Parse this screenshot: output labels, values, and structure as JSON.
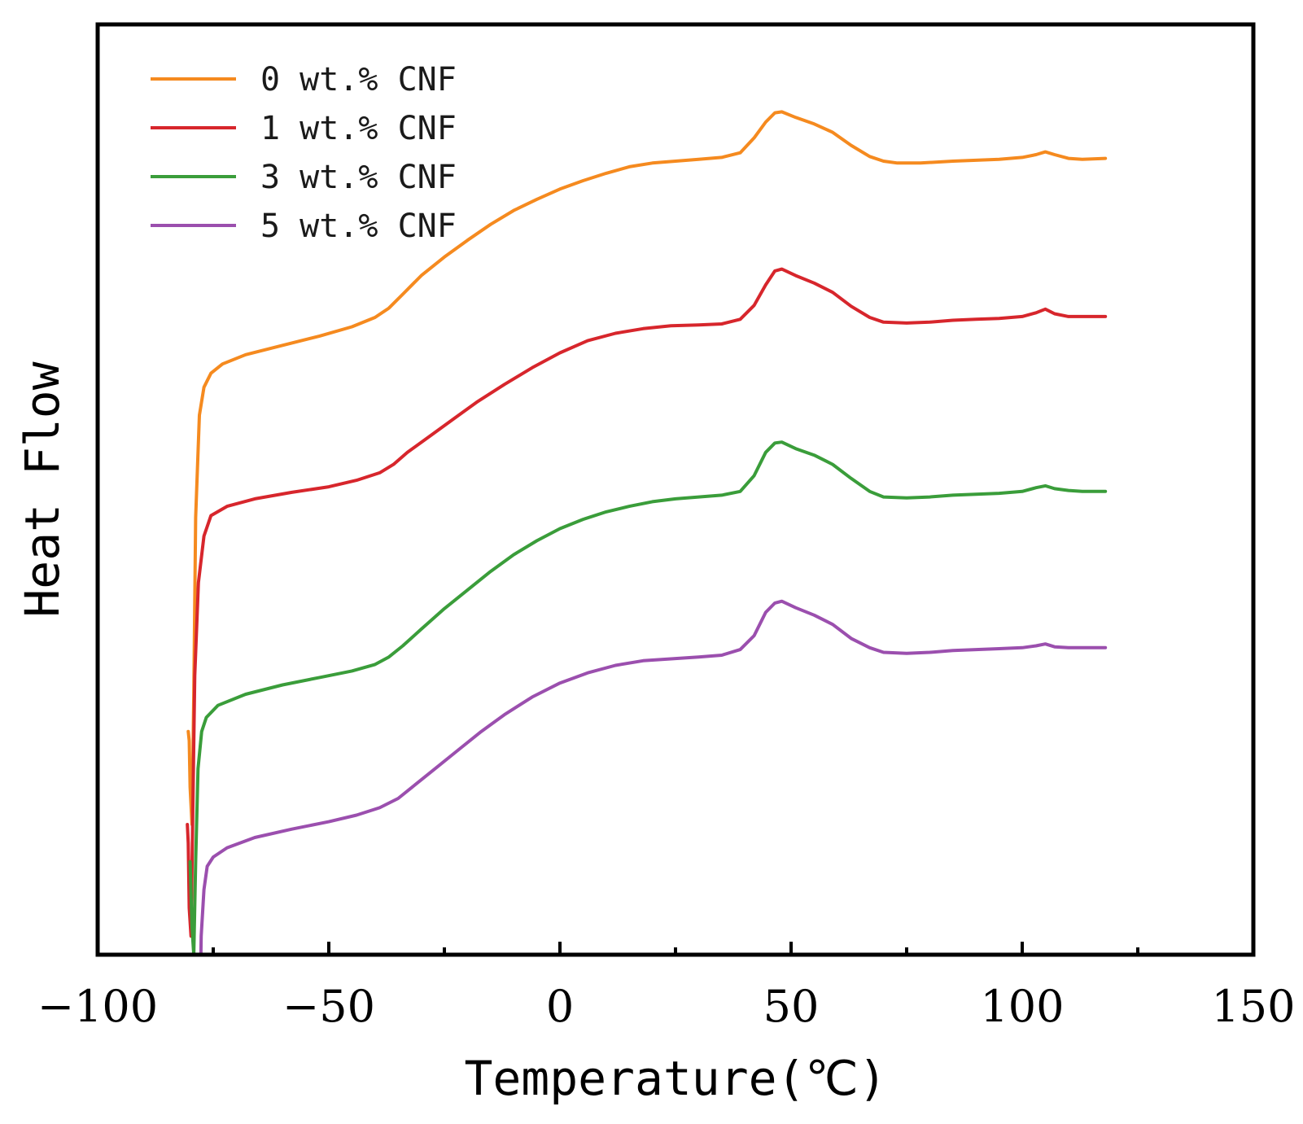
{
  "chart_data": {
    "type": "line",
    "title": "",
    "xlabel": "Temperature(℃)",
    "ylabel": "Heat Flow",
    "xlim": [
      -100,
      150
    ],
    "ylim": [
      0,
      1
    ],
    "x_ticks": [
      -100,
      -50,
      0,
      50,
      100,
      150
    ],
    "x_tick_labels": [
      "−100",
      "−50",
      "0",
      "50",
      "100",
      "150"
    ],
    "y_ticks_shown": false,
    "grid": false,
    "legend_position": "top-left",
    "series": [
      {
        "name": "0 wt.% CNF",
        "color": "#f58a1f",
        "points": [
          [
            -80.4,
            0.24
          ],
          [
            -80.2,
            0.23
          ],
          [
            -80.0,
            0.18
          ],
          [
            -79.6,
            0.14
          ],
          [
            -79.2,
            0.28
          ],
          [
            -78.8,
            0.47
          ],
          [
            -78.0,
            0.58
          ],
          [
            -77.0,
            0.61
          ],
          [
            -75.5,
            0.625
          ],
          [
            -73,
            0.635
          ],
          [
            -68,
            0.645
          ],
          [
            -60,
            0.655
          ],
          [
            -52,
            0.665
          ],
          [
            -45,
            0.675
          ],
          [
            -40,
            0.685
          ],
          [
            -37,
            0.695
          ],
          [
            -34,
            0.71
          ],
          [
            -30,
            0.73
          ],
          [
            -25,
            0.75
          ],
          [
            -20,
            0.768
          ],
          [
            -15,
            0.785
          ],
          [
            -10,
            0.8
          ],
          [
            -5,
            0.812
          ],
          [
            0,
            0.823
          ],
          [
            5,
            0.832
          ],
          [
            10,
            0.84
          ],
          [
            15,
            0.847
          ],
          [
            20,
            0.851
          ],
          [
            25,
            0.853
          ],
          [
            30,
            0.855
          ],
          [
            35,
            0.857
          ],
          [
            39,
            0.862
          ],
          [
            42,
            0.878
          ],
          [
            44.5,
            0.895
          ],
          [
            46.5,
            0.905
          ],
          [
            48,
            0.906
          ],
          [
            51,
            0.9
          ],
          [
            55,
            0.893
          ],
          [
            59,
            0.884
          ],
          [
            63,
            0.87
          ],
          [
            67,
            0.858
          ],
          [
            70,
            0.853
          ],
          [
            73,
            0.851
          ],
          [
            78,
            0.851
          ],
          [
            85,
            0.853
          ],
          [
            90,
            0.854
          ],
          [
            95,
            0.855
          ],
          [
            100,
            0.857
          ],
          [
            103,
            0.86
          ],
          [
            105,
            0.863
          ],
          [
            107,
            0.86
          ],
          [
            110,
            0.856
          ],
          [
            113,
            0.855
          ],
          [
            118,
            0.856
          ]
        ]
      },
      {
        "name": "1 wt.% CNF",
        "color": "#d7262c",
        "points": [
          [
            -80.6,
            0.14
          ],
          [
            -80.4,
            0.12
          ],
          [
            -80.2,
            0.05
          ],
          [
            -79.8,
            0.02
          ],
          [
            -79.4,
            0.16
          ],
          [
            -79.0,
            0.3
          ],
          [
            -78.2,
            0.4
          ],
          [
            -77.0,
            0.45
          ],
          [
            -75.5,
            0.472
          ],
          [
            -72,
            0.482
          ],
          [
            -66,
            0.49
          ],
          [
            -58,
            0.497
          ],
          [
            -50,
            0.503
          ],
          [
            -44,
            0.51
          ],
          [
            -39,
            0.518
          ],
          [
            -36,
            0.527
          ],
          [
            -33,
            0.54
          ],
          [
            -28,
            0.558
          ],
          [
            -23,
            0.576
          ],
          [
            -18,
            0.594
          ],
          [
            -12,
            0.613
          ],
          [
            -6,
            0.631
          ],
          [
            0,
            0.647
          ],
          [
            6,
            0.66
          ],
          [
            12,
            0.668
          ],
          [
            18,
            0.673
          ],
          [
            24,
            0.676
          ],
          [
            30,
            0.677
          ],
          [
            35,
            0.678
          ],
          [
            39,
            0.683
          ],
          [
            42,
            0.698
          ],
          [
            44.5,
            0.72
          ],
          [
            46.5,
            0.735
          ],
          [
            48,
            0.737
          ],
          [
            51,
            0.73
          ],
          [
            55,
            0.722
          ],
          [
            59,
            0.712
          ],
          [
            63,
            0.697
          ],
          [
            67,
            0.685
          ],
          [
            70,
            0.68
          ],
          [
            75,
            0.679
          ],
          [
            80,
            0.68
          ],
          [
            85,
            0.682
          ],
          [
            90,
            0.683
          ],
          [
            95,
            0.684
          ],
          [
            100,
            0.686
          ],
          [
            103,
            0.69
          ],
          [
            105,
            0.694
          ],
          [
            107,
            0.689
          ],
          [
            110,
            0.686
          ],
          [
            113,
            0.686
          ],
          [
            118,
            0.686
          ]
        ]
      },
      {
        "name": "3 wt.% CNF",
        "color": "#3a9d3a",
        "points": [
          [
            -80.0,
            0.1
          ],
          [
            -79.6,
            0.03
          ],
          [
            -79.2,
            0.0
          ],
          [
            -78.8,
            0.1
          ],
          [
            -78.3,
            0.2
          ],
          [
            -77.5,
            0.24
          ],
          [
            -76.5,
            0.255
          ],
          [
            -74,
            0.268
          ],
          [
            -68,
            0.28
          ],
          [
            -60,
            0.29
          ],
          [
            -52,
            0.298
          ],
          [
            -45,
            0.305
          ],
          [
            -40,
            0.312
          ],
          [
            -37,
            0.32
          ],
          [
            -34,
            0.332
          ],
          [
            -30,
            0.35
          ],
          [
            -25,
            0.372
          ],
          [
            -20,
            0.392
          ],
          [
            -15,
            0.412
          ],
          [
            -10,
            0.43
          ],
          [
            -5,
            0.445
          ],
          [
            0,
            0.458
          ],
          [
            5,
            0.468
          ],
          [
            10,
            0.476
          ],
          [
            15,
            0.482
          ],
          [
            20,
            0.487
          ],
          [
            25,
            0.49
          ],
          [
            30,
            0.492
          ],
          [
            35,
            0.494
          ],
          [
            39,
            0.498
          ],
          [
            42,
            0.515
          ],
          [
            44.5,
            0.54
          ],
          [
            46.5,
            0.55
          ],
          [
            48,
            0.551
          ],
          [
            51,
            0.544
          ],
          [
            55,
            0.537
          ],
          [
            59,
            0.527
          ],
          [
            63,
            0.512
          ],
          [
            67,
            0.498
          ],
          [
            70,
            0.492
          ],
          [
            75,
            0.491
          ],
          [
            80,
            0.492
          ],
          [
            85,
            0.494
          ],
          [
            90,
            0.495
          ],
          [
            95,
            0.496
          ],
          [
            100,
            0.498
          ],
          [
            103,
            0.502
          ],
          [
            105,
            0.504
          ],
          [
            107,
            0.501
          ],
          [
            110,
            0.499
          ],
          [
            113,
            0.498
          ],
          [
            118,
            0.498
          ]
        ]
      },
      {
        "name": "5 wt.% CNF",
        "color": "#9b4fae",
        "points": [
          [
            -78.0,
            -0.1
          ],
          [
            -77.6,
            0.02
          ],
          [
            -77.0,
            0.07
          ],
          [
            -76.3,
            0.095
          ],
          [
            -75,
            0.105
          ],
          [
            -72,
            0.115
          ],
          [
            -66,
            0.126
          ],
          [
            -58,
            0.135
          ],
          [
            -50,
            0.143
          ],
          [
            -44,
            0.15
          ],
          [
            -39,
            0.158
          ],
          [
            -35,
            0.168
          ],
          [
            -32,
            0.18
          ],
          [
            -27,
            0.2
          ],
          [
            -22,
            0.22
          ],
          [
            -17,
            0.24
          ],
          [
            -12,
            0.258
          ],
          [
            -6,
            0.277
          ],
          [
            0,
            0.292
          ],
          [
            6,
            0.303
          ],
          [
            12,
            0.311
          ],
          [
            18,
            0.316
          ],
          [
            24,
            0.318
          ],
          [
            30,
            0.32
          ],
          [
            35,
            0.322
          ],
          [
            39,
            0.328
          ],
          [
            42,
            0.343
          ],
          [
            44.5,
            0.368
          ],
          [
            46.5,
            0.378
          ],
          [
            48,
            0.38
          ],
          [
            51,
            0.373
          ],
          [
            55,
            0.365
          ],
          [
            59,
            0.355
          ],
          [
            63,
            0.34
          ],
          [
            67,
            0.33
          ],
          [
            70,
            0.325
          ],
          [
            75,
            0.324
          ],
          [
            80,
            0.325
          ],
          [
            85,
            0.327
          ],
          [
            90,
            0.328
          ],
          [
            95,
            0.329
          ],
          [
            100,
            0.33
          ],
          [
            103,
            0.332
          ],
          [
            105,
            0.334
          ],
          [
            107,
            0.331
          ],
          [
            110,
            0.33
          ],
          [
            113,
            0.33
          ],
          [
            118,
            0.33
          ]
        ]
      }
    ]
  }
}
